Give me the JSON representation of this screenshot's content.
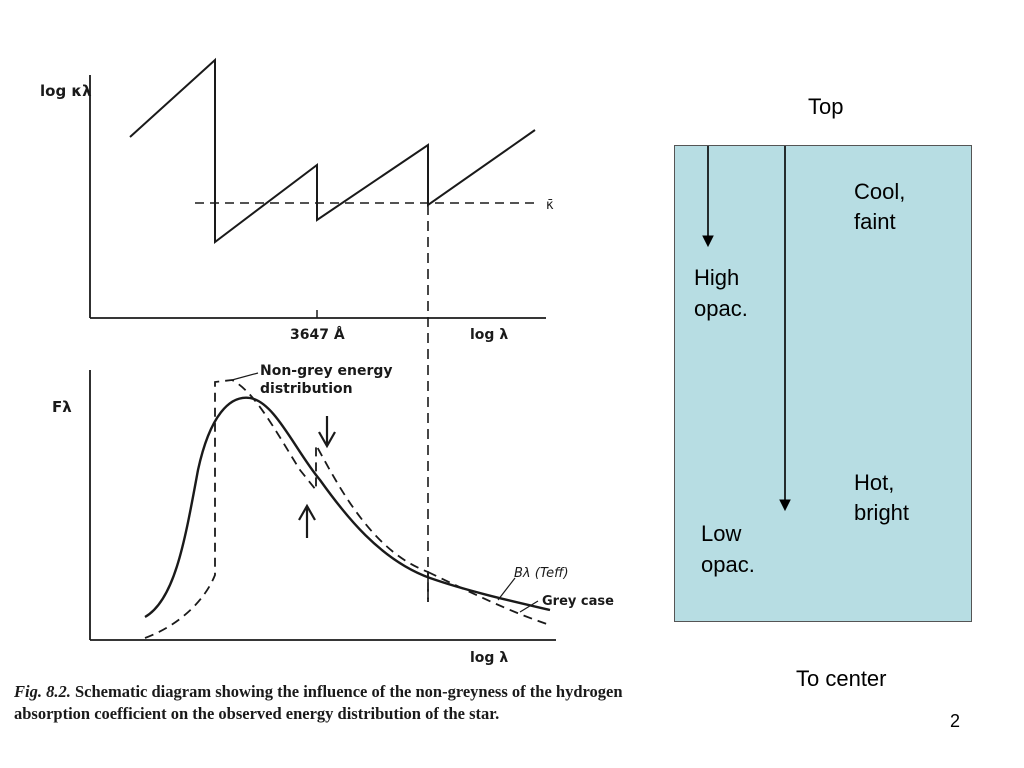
{
  "figure": {
    "top_plot": {
      "ylabel": "log κλ",
      "xlabel": "log λ",
      "tick_label": "3647 Å",
      "mean_label": "κ̄"
    },
    "bottom_plot": {
      "ylabel": "Fλ",
      "xlabel": "log λ",
      "annotation_line1": "Non-grey energy",
      "annotation_line2": "distribution",
      "planck_label": "Bλ (Teff)",
      "grey_label": "Grey case"
    },
    "caption_prefix": "Fig. 8.2.",
    "caption_text": "Schematic diagram showing the influence of the non-greyness of the hydrogen absorption coefficient on the observed energy distribution of the star."
  },
  "column": {
    "top_label": "Top",
    "bottom_label": "To center",
    "cool_line1": "Cool,",
    "cool_line2": "faint",
    "hot_line1": "Hot,",
    "hot_line2": "bright",
    "high_line1": "High",
    "high_line2": "opac.",
    "low_line1": "Low",
    "low_line2": "opac.",
    "box_color": "#b7dde3"
  },
  "page_number": "2"
}
